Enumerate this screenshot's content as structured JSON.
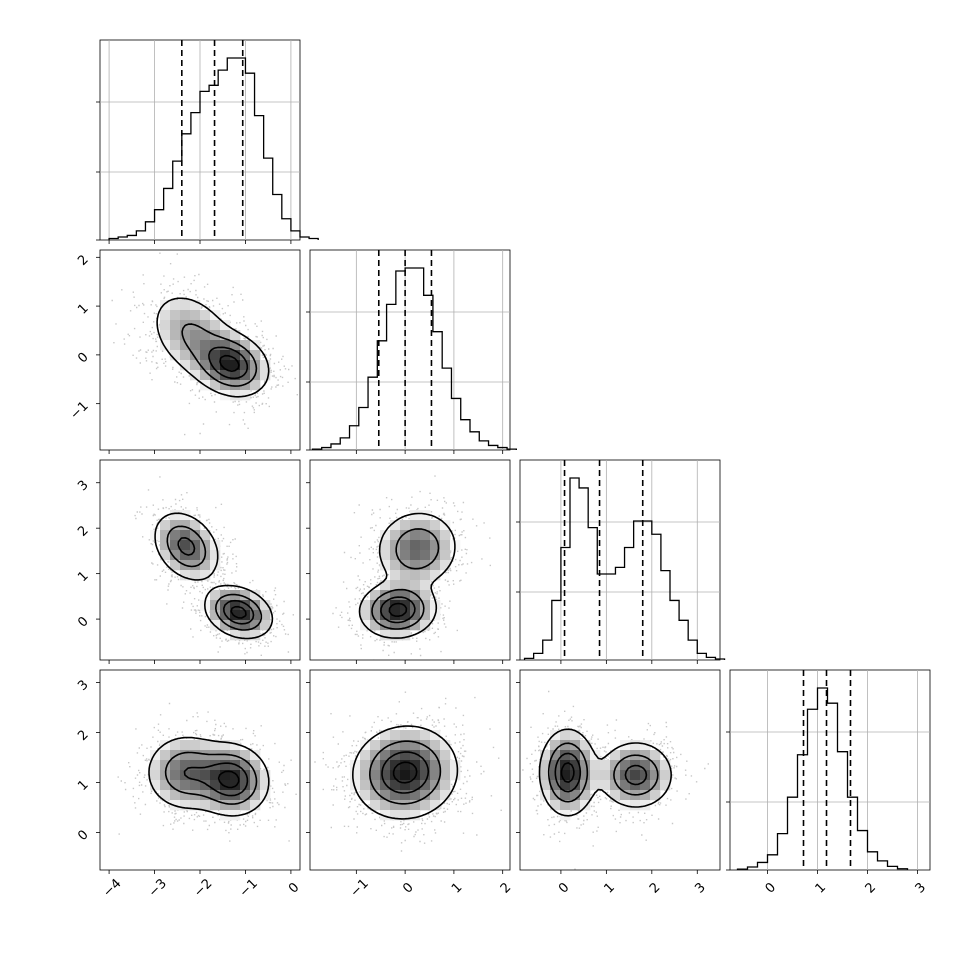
{
  "chart_data": {
    "type": "corner",
    "n_params": 4,
    "grid": true,
    "quantiles": [
      0.16,
      0.5,
      0.84
    ],
    "contour_levels": 4,
    "variables": [
      {
        "range": [
          -4.2,
          0.2
        ],
        "ticks": [
          -4,
          -3,
          -2,
          -1,
          0
        ],
        "tick_labels": [
          "−4",
          "−3",
          "−2",
          "−1",
          "0"
        ],
        "quantile_values": [
          -2.4,
          -1.68,
          -1.06
        ],
        "hist_counts": [
          0.5,
          1,
          1.5,
          3,
          6,
          10,
          17,
          26,
          35,
          42,
          49,
          51,
          56,
          60,
          60,
          55,
          41,
          27,
          15,
          7,
          3,
          1,
          0.5
        ],
        "hist_edges_start": -4.0,
        "hist_bin_width": 0.2
      },
      {
        "range": [
          -1.95,
          2.15
        ],
        "ticks": [
          -1,
          0,
          1,
          2
        ],
        "tick_labels": [
          "−1",
          "0",
          "1",
          "2"
        ],
        "quantile_values": [
          -0.54,
          0.0,
          0.54
        ],
        "hist_counts": [
          0.3,
          0.8,
          2,
          4,
          8,
          14,
          24,
          36,
          48,
          59,
          60,
          60,
          51,
          39,
          27,
          17,
          10,
          6,
          3,
          1.5,
          0.8,
          0.3
        ],
        "hist_edges_start": -1.9,
        "hist_bin_width": 0.19
      },
      {
        "range": [
          -0.9,
          3.5
        ],
        "ticks": [
          0,
          1,
          2,
          3
        ],
        "tick_labels": [
          "0",
          "1",
          "2",
          "3"
        ],
        "quantile_values": [
          0.08,
          0.85,
          1.8
        ],
        "hist_counts": [
          0.5,
          2,
          6,
          18,
          34,
          55,
          52,
          40,
          26,
          26,
          28,
          34,
          42,
          42,
          38,
          27,
          18,
          12,
          6,
          2,
          0.8,
          0.3
        ],
        "hist_edges_start": -0.8,
        "hist_bin_width": 0.2
      },
      {
        "range": [
          -0.75,
          3.25
        ],
        "ticks": [
          0,
          1,
          2,
          3
        ],
        "tick_labels": [
          "0",
          "1",
          "2",
          "3"
        ],
        "quantile_values": [
          0.72,
          1.18,
          1.66
        ],
        "hist_counts": [
          0.3,
          1,
          2.5,
          5,
          12,
          24,
          38,
          53,
          60,
          55,
          39,
          24,
          13,
          6,
          3,
          1.2,
          0.4
        ],
        "hist_edges_start": -0.6,
        "hist_bin_width": 0.2
      }
    ],
    "pairs": [
      {
        "x_var": 0,
        "y_var": 1,
        "modes": [
          {
            "mx": -2.15,
            "my": 0.4,
            "sx": 0.5,
            "sy": 0.48,
            "rho": -0.35,
            "w": 0.45
          },
          {
            "mx": -1.3,
            "my": -0.2,
            "sx": 0.4,
            "sy": 0.32,
            "rho": -0.2,
            "w": 0.55
          }
        ]
      },
      {
        "x_var": 0,
        "y_var": 2,
        "modes": [
          {
            "mx": -2.3,
            "my": 1.6,
            "sx": 0.36,
            "sy": 0.38,
            "rho": -0.3,
            "w": 0.5
          },
          {
            "mx": -1.15,
            "my": 0.15,
            "sx": 0.36,
            "sy": 0.28,
            "rho": -0.25,
            "w": 0.5
          }
        ]
      },
      {
        "x_var": 1,
        "y_var": 2,
        "modes": [
          {
            "mx": 0.25,
            "my": 1.55,
            "sx": 0.42,
            "sy": 0.42,
            "rho": 0.05,
            "w": 0.5
          },
          {
            "mx": -0.15,
            "my": 0.2,
            "sx": 0.38,
            "sy": 0.3,
            "rho": 0.05,
            "w": 0.5
          }
        ]
      },
      {
        "x_var": 0,
        "y_var": 3,
        "modes": [
          {
            "mx": -2.3,
            "my": 1.2,
            "sx": 0.45,
            "sy": 0.38,
            "rho": 0.0,
            "w": 0.45
          },
          {
            "mx": -1.3,
            "my": 1.05,
            "sx": 0.4,
            "sy": 0.35,
            "rho": -0.05,
            "w": 0.55
          }
        ]
      },
      {
        "x_var": 1,
        "y_var": 3,
        "modes": [
          {
            "mx": 0.0,
            "my": 1.2,
            "sx": 0.52,
            "sy": 0.45,
            "rho": 0.05,
            "w": 1.0
          }
        ]
      },
      {
        "x_var": 2,
        "y_var": 3,
        "modes": [
          {
            "mx": 0.15,
            "my": 1.2,
            "sx": 0.3,
            "sy": 0.42,
            "rho": 0.0,
            "w": 0.55
          },
          {
            "mx": 1.65,
            "my": 1.15,
            "sx": 0.4,
            "sy": 0.33,
            "rho": 0.0,
            "w": 0.45
          }
        ]
      }
    ]
  }
}
